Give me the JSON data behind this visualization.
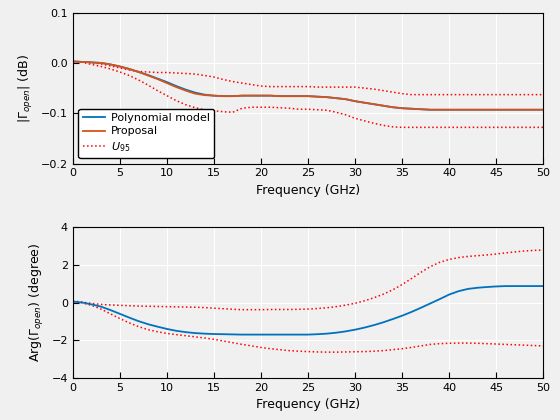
{
  "freq_coarse": [
    0,
    1,
    2,
    3,
    4,
    5,
    6,
    7,
    8,
    9,
    10,
    11,
    12,
    13,
    14,
    15,
    16,
    17,
    18,
    19,
    20,
    21,
    22,
    23,
    24,
    25,
    26,
    27,
    28,
    29,
    30,
    31,
    32,
    33,
    34,
    35,
    36,
    37,
    38,
    39,
    40,
    41,
    42,
    43,
    44,
    45,
    46,
    47,
    48,
    49,
    50
  ],
  "mag_poly": [
    0.003,
    0.002,
    0.001,
    0.0,
    -0.003,
    -0.007,
    -0.012,
    -0.018,
    -0.024,
    -0.031,
    -0.038,
    -0.046,
    -0.053,
    -0.059,
    -0.063,
    -0.065,
    -0.066,
    -0.066,
    -0.065,
    -0.065,
    -0.065,
    -0.065,
    -0.066,
    -0.066,
    -0.066,
    -0.066,
    -0.067,
    -0.068,
    -0.07,
    -0.072,
    -0.076,
    -0.079,
    -0.082,
    -0.085,
    -0.088,
    -0.09,
    -0.091,
    -0.092,
    -0.093,
    -0.093,
    -0.093,
    -0.093,
    -0.093,
    -0.093,
    -0.093,
    -0.093,
    -0.093,
    -0.093,
    -0.093,
    -0.093,
    -0.093
  ],
  "mag_proposal": [
    0.003,
    0.002,
    0.001,
    0.0,
    -0.003,
    -0.007,
    -0.012,
    -0.018,
    -0.025,
    -0.032,
    -0.04,
    -0.048,
    -0.055,
    -0.061,
    -0.064,
    -0.065,
    -0.066,
    -0.066,
    -0.065,
    -0.065,
    -0.065,
    -0.065,
    -0.066,
    -0.066,
    -0.066,
    -0.066,
    -0.067,
    -0.068,
    -0.07,
    -0.072,
    -0.076,
    -0.079,
    -0.082,
    -0.085,
    -0.088,
    -0.09,
    -0.091,
    -0.092,
    -0.093,
    -0.093,
    -0.093,
    -0.093,
    -0.093,
    -0.093,
    -0.093,
    -0.093,
    -0.093,
    -0.093,
    -0.093,
    -0.093,
    -0.093
  ],
  "mag_u95_upper": [
    0.003,
    0.002,
    0.001,
    -0.002,
    -0.006,
    -0.01,
    -0.014,
    -0.017,
    -0.018,
    -0.019,
    -0.019,
    -0.02,
    -0.021,
    -0.022,
    -0.025,
    -0.028,
    -0.033,
    -0.037,
    -0.04,
    -0.043,
    -0.046,
    -0.047,
    -0.047,
    -0.047,
    -0.047,
    -0.047,
    -0.048,
    -0.048,
    -0.048,
    -0.048,
    -0.048,
    -0.05,
    -0.052,
    -0.055,
    -0.058,
    -0.061,
    -0.063,
    -0.063,
    -0.063,
    -0.063,
    -0.063,
    -0.063,
    -0.063,
    -0.063,
    -0.063,
    -0.063,
    -0.063,
    -0.063,
    -0.063,
    -0.063,
    -0.063
  ],
  "mag_u95_lower": [
    0.003,
    0.001,
    -0.003,
    -0.007,
    -0.012,
    -0.018,
    -0.025,
    -0.034,
    -0.044,
    -0.055,
    -0.065,
    -0.075,
    -0.083,
    -0.089,
    -0.093,
    -0.095,
    -0.097,
    -0.098,
    -0.09,
    -0.088,
    -0.088,
    -0.088,
    -0.089,
    -0.09,
    -0.092,
    -0.092,
    -0.093,
    -0.094,
    -0.098,
    -0.103,
    -0.11,
    -0.115,
    -0.12,
    -0.124,
    -0.127,
    -0.128,
    -0.128,
    -0.128,
    -0.128,
    -0.128,
    -0.128,
    -0.128,
    -0.128,
    -0.128,
    -0.128,
    -0.128,
    -0.128,
    -0.128,
    -0.128,
    -0.128,
    -0.128
  ],
  "phase_poly": [
    0.05,
    0.0,
    -0.1,
    -0.22,
    -0.4,
    -0.6,
    -0.8,
    -0.99,
    -1.15,
    -1.28,
    -1.4,
    -1.5,
    -1.57,
    -1.62,
    -1.65,
    -1.67,
    -1.68,
    -1.69,
    -1.7,
    -1.7,
    -1.7,
    -1.7,
    -1.7,
    -1.7,
    -1.7,
    -1.7,
    -1.68,
    -1.65,
    -1.6,
    -1.53,
    -1.44,
    -1.33,
    -1.2,
    -1.05,
    -0.88,
    -0.7,
    -0.5,
    -0.28,
    -0.05,
    0.18,
    0.42,
    0.6,
    0.72,
    0.78,
    0.82,
    0.85,
    0.87,
    0.87,
    0.87,
    0.87,
    0.87
  ],
  "phase_u95_upper": [
    0.08,
    0.02,
    -0.05,
    -0.1,
    -0.13,
    -0.15,
    -0.17,
    -0.19,
    -0.2,
    -0.21,
    -0.22,
    -0.23,
    -0.24,
    -0.25,
    -0.27,
    -0.3,
    -0.33,
    -0.36,
    -0.38,
    -0.38,
    -0.38,
    -0.37,
    -0.37,
    -0.37,
    -0.36,
    -0.35,
    -0.32,
    -0.28,
    -0.22,
    -0.14,
    -0.04,
    0.09,
    0.25,
    0.44,
    0.67,
    0.95,
    1.27,
    1.6,
    1.9,
    2.13,
    2.28,
    2.38,
    2.44,
    2.48,
    2.52,
    2.57,
    2.63,
    2.68,
    2.73,
    2.76,
    2.78
  ],
  "phase_u95_lower": [
    0.02,
    -0.02,
    -0.15,
    -0.35,
    -0.6,
    -0.85,
    -1.08,
    -1.28,
    -1.44,
    -1.55,
    -1.64,
    -1.7,
    -1.76,
    -1.82,
    -1.88,
    -1.95,
    -2.04,
    -2.13,
    -2.22,
    -2.3,
    -2.38,
    -2.45,
    -2.5,
    -2.55,
    -2.58,
    -2.6,
    -2.62,
    -2.63,
    -2.63,
    -2.62,
    -2.61,
    -2.6,
    -2.58,
    -2.55,
    -2.5,
    -2.45,
    -2.38,
    -2.3,
    -2.22,
    -2.18,
    -2.16,
    -2.15,
    -2.15,
    -2.16,
    -2.18,
    -2.2,
    -2.22,
    -2.24,
    -2.26,
    -2.28,
    -2.3
  ],
  "color_poly": "#0072BD",
  "color_proposal": "#D95319",
  "color_u95": "#FF0000",
  "mag_ylim": [
    -0.2,
    0.1
  ],
  "mag_yticks": [
    -0.2,
    -0.1,
    0.0,
    0.1
  ],
  "phase_ylim": [
    -4,
    4
  ],
  "phase_yticks": [
    -4,
    -2,
    0,
    2,
    4
  ],
  "xlim": [
    0,
    50
  ],
  "xticks": [
    0,
    5,
    10,
    15,
    20,
    25,
    30,
    35,
    40,
    45,
    50
  ],
  "xlabel": "Frequency (GHz)",
  "ylabel_mag": "|$\\Gamma_{open}$| (dB)",
  "ylabel_phase": "Arg($\\Gamma_{open}$) (degree)",
  "legend_labels": [
    "Polynomial model",
    "Proposal",
    "$U_{95}$"
  ],
  "bg_color": "#F0F0F0",
  "grid_color": "#FFFFFF"
}
